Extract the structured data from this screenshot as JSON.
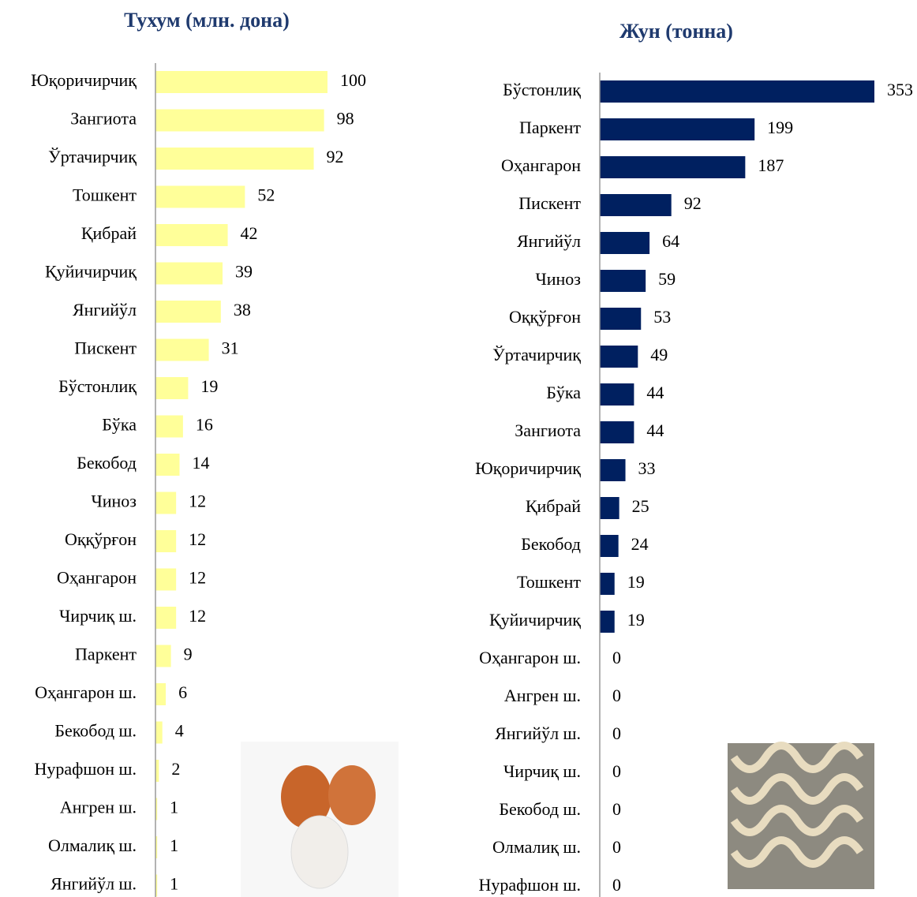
{
  "chart_data": [
    {
      "type": "bar",
      "orientation": "horizontal",
      "title": "Тухум (млн. дона)",
      "color": "#ffff99",
      "categories": [
        "Юқоричирчиқ",
        "Зангиота",
        "Ўртачирчиқ",
        "Тошкент",
        "Қибрай",
        "Қуйичирчиқ",
        "Янгийўл",
        "Пискент",
        "Бўстонлиқ",
        "Бўка",
        "Бекобод",
        "Чиноз",
        "Оққўрғон",
        "Оҳангарон",
        "Чирчиқ ш.",
        "Паркент",
        "Оҳангарон ш.",
        "Бекобод ш.",
        "Нурафшон ш.",
        "Ангрен ш.",
        "Олмалиқ ш.",
        "Янгийўл ш."
      ],
      "values": [
        100,
        98,
        92,
        52,
        42,
        39,
        38,
        31,
        19,
        16,
        14,
        12,
        12,
        12,
        12,
        9,
        6,
        4,
        2,
        1,
        1,
        1
      ]
    },
    {
      "type": "bar",
      "orientation": "horizontal",
      "title": "Жун (тонна)",
      "color": "#002060",
      "categories": [
        "Бўстонлиқ",
        "Паркент",
        "Оҳангарон",
        "Пискент",
        "Янгийўл",
        "Чиноз",
        "Оққўрғон",
        "Ўртачирчиқ",
        "Бўка",
        "Зангиота",
        "Юқоричирчиқ",
        "Қибрай",
        "Бекобод",
        "Тошкент",
        "Қуйичирчиқ",
        "Оҳангарон ш.",
        "Ангрен ш.",
        "Янгийўл ш.",
        "Чирчиқ ш.",
        "Бекобод ш.",
        "Олмалиқ ш.",
        "Нурафшон ш."
      ],
      "values": [
        353,
        199,
        187,
        92,
        64,
        59,
        53,
        49,
        44,
        44,
        33,
        25,
        24,
        19,
        19,
        0,
        0,
        0,
        0,
        0,
        0,
        0
      ]
    }
  ]
}
